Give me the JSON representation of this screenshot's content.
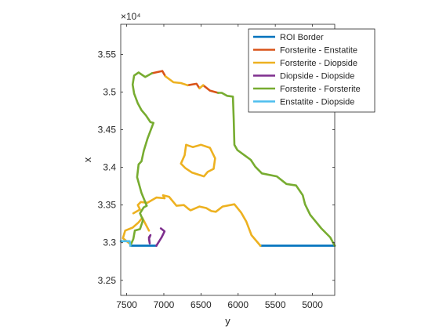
{
  "chart_data": {
    "type": "line",
    "xlabel": "y",
    "ylabel": "x",
    "x_axis": {
      "direction": "reversed",
      "lim": [
        4700,
        7580
      ],
      "ticks": [
        7500,
        7000,
        6500,
        6000,
        5500,
        5000
      ],
      "tick_labels": [
        "7500",
        "7000",
        "6500",
        "6000",
        "5500",
        "5000"
      ]
    },
    "y_axis": {
      "lim": [
        32300,
        35900
      ],
      "exponent_label": "×10⁴",
      "ticks": [
        32500,
        33000,
        33500,
        34000,
        34500,
        35000,
        35500
      ],
      "tick_labels": [
        "3.25",
        "3.3",
        "3.35",
        "3.4",
        "3.45",
        "3.5",
        "3.55"
      ]
    },
    "grid": false,
    "legend_position": "top-right",
    "series": [
      {
        "name": "ROI Border",
        "color": "#0072BD",
        "segments": [
          [
            [
              7450,
              32960
            ],
            [
              7100,
              32960
            ]
          ],
          [
            [
              5700,
              32960
            ],
            [
              4700,
              32960
            ]
          ]
        ]
      },
      {
        "name": "Forsterite - Enstatite",
        "color": "#D95319",
        "segments": [
          [
            [
              7160,
              35250
            ],
            [
              7020,
              35280
            ],
            [
              6980,
              35210
            ]
          ],
          [
            [
              6680,
              35090
            ],
            [
              6560,
              35110
            ],
            [
              6520,
              35050
            ]
          ],
          [
            [
              6470,
              35090
            ],
            [
              6380,
              35020
            ],
            [
              6270,
              34990
            ]
          ]
        ]
      },
      {
        "name": "Forsterite - Diopside",
        "color": "#EDB120",
        "segments": [
          [
            [
              6980,
              35210
            ],
            [
              6870,
              35130
            ],
            [
              6770,
              35120
            ],
            [
              6680,
              35090
            ]
          ],
          [
            [
              6520,
              35050
            ],
            [
              6470,
              35090
            ]
          ],
          [
            [
              6990,
              33590
            ],
            [
              7010,
              33630
            ],
            [
              6930,
              33610
            ],
            [
              6830,
              33490
            ],
            [
              6730,
              33500
            ],
            [
              6670,
              33450
            ],
            [
              6640,
              33430
            ],
            [
              6520,
              33480
            ],
            [
              6430,
              33460
            ],
            [
              6360,
              33420
            ],
            [
              6300,
              33410
            ],
            [
              6210,
              33480
            ],
            [
              6050,
              33510
            ],
            [
              5960,
              33400
            ],
            [
              5890,
              33280
            ],
            [
              5820,
              33100
            ],
            [
              5700,
              32960
            ]
          ],
          [
            [
              6990,
              33590
            ],
            [
              7100,
              33600
            ],
            [
              7220,
              33530
            ],
            [
              7310,
              33540
            ],
            [
              7350,
              33500
            ],
            [
              7320,
              33440
            ],
            [
              7410,
              33390
            ]
          ],
          [
            [
              6700,
              34300
            ],
            [
              6610,
              34270
            ],
            [
              6500,
              34300
            ],
            [
              6380,
              34260
            ],
            [
              6310,
              34120
            ],
            [
              6330,
              33980
            ],
            [
              6410,
              33940
            ],
            [
              6460,
              33880
            ],
            [
              6620,
              33930
            ],
            [
              6710,
              33990
            ],
            [
              6770,
              34050
            ],
            [
              6720,
              34160
            ],
            [
              6700,
              34300
            ]
          ],
          [
            [
              7200,
              33160
            ],
            [
              7290,
              33330
            ],
            [
              7340,
              33270
            ],
            [
              7420,
              33200
            ],
            [
              7520,
              33160
            ],
            [
              7550,
              33060
            ],
            [
              7450,
              32980
            ]
          ]
        ]
      },
      {
        "name": "Diopside - Diopside",
        "color": "#7E2F8E",
        "segments": [
          [
            [
              7100,
              32960
            ],
            [
              7030,
              33070
            ],
            [
              6990,
              33150
            ],
            [
              7040,
              33190
            ]
          ],
          [
            [
              7180,
              33100
            ],
            [
              7200,
              33050
            ],
            [
              7190,
              32990
            ],
            [
              7200,
              33070
            ],
            [
              7180,
              33100
            ]
          ]
        ]
      },
      {
        "name": "Forsterite - Forsterite",
        "color": "#77AC30",
        "segments": [
          [
            [
              7450,
              32960
            ],
            [
              7410,
              33050
            ],
            [
              7390,
              33160
            ],
            [
              7320,
              33180
            ],
            [
              7280,
              33300
            ],
            [
              7320,
              33390
            ],
            [
              7270,
              33470
            ],
            [
              7230,
              33490
            ],
            [
              7300,
              33660
            ],
            [
              7360,
              33870
            ],
            [
              7340,
              34040
            ],
            [
              7300,
              34080
            ],
            [
              7270,
              34220
            ],
            [
              7220,
              34380
            ],
            [
              7140,
              34590
            ],
            [
              7180,
              34600
            ],
            [
              7240,
              34690
            ],
            [
              7300,
              34760
            ],
            [
              7350,
              34850
            ],
            [
              7400,
              34980
            ],
            [
              7420,
              35100
            ],
            [
              7400,
              35220
            ],
            [
              7340,
              35260
            ],
            [
              7250,
              35200
            ],
            [
              7160,
              35250
            ]
          ],
          [
            [
              6270,
              34990
            ],
            [
              6220,
              34990
            ],
            [
              6150,
              34950
            ],
            [
              6070,
              34940
            ],
            [
              6060,
              34650
            ],
            [
              6050,
              34300
            ],
            [
              6010,
              34230
            ],
            [
              5900,
              34150
            ],
            [
              5830,
              34100
            ],
            [
              5770,
              34010
            ],
            [
              5680,
              33920
            ],
            [
              5480,
              33880
            ],
            [
              5350,
              33780
            ],
            [
              5220,
              33760
            ],
            [
              5130,
              33630
            ],
            [
              5100,
              33510
            ],
            [
              5030,
              33370
            ],
            [
              4880,
              33190
            ],
            [
              4760,
              33070
            ],
            [
              4700,
              32960
            ]
          ]
        ]
      },
      {
        "name": "Enstatite - Diopside",
        "color": "#4DBEEE",
        "segments": [
          [
            [
              7580,
              33020
            ],
            [
              7460,
              33020
            ],
            [
              7450,
              32960
            ]
          ]
        ]
      }
    ]
  }
}
